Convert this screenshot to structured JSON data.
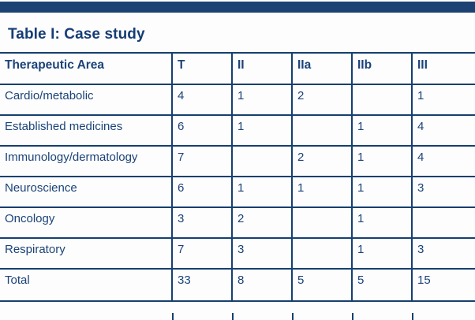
{
  "title": "Table I: Case study",
  "colors": {
    "navy_bar": "#1b4273",
    "border_navy": "#16406f",
    "text_navy": "#1b4379"
  },
  "table": {
    "columns": {
      "area": "Therapeutic Area",
      "t": "T",
      "ii": "II",
      "iia": "IIa",
      "iib": "IIb",
      "iii": "III"
    },
    "rows": [
      {
        "area": "Cardio/metabolic",
        "values": [
          "4",
          "1",
          "2",
          "",
          "1"
        ]
      },
      {
        "area": "Established medicines",
        "values": [
          "6",
          "1",
          "",
          "1",
          "4"
        ]
      },
      {
        "area": "Immunology/dermatology",
        "values": [
          "7",
          "",
          "2",
          "1",
          "4"
        ]
      },
      {
        "area": "Neuroscience",
        "values": [
          "6",
          "1",
          "1",
          "1",
          "3"
        ]
      },
      {
        "area": "Oncology",
        "values": [
          "3",
          "2",
          "",
          "1",
          ""
        ]
      },
      {
        "area": "Respiratory",
        "values": [
          "7",
          "3",
          "",
          "1",
          "3"
        ]
      },
      {
        "area": "Total",
        "values": [
          "33",
          "8",
          "5",
          "5",
          "15"
        ]
      }
    ]
  }
}
